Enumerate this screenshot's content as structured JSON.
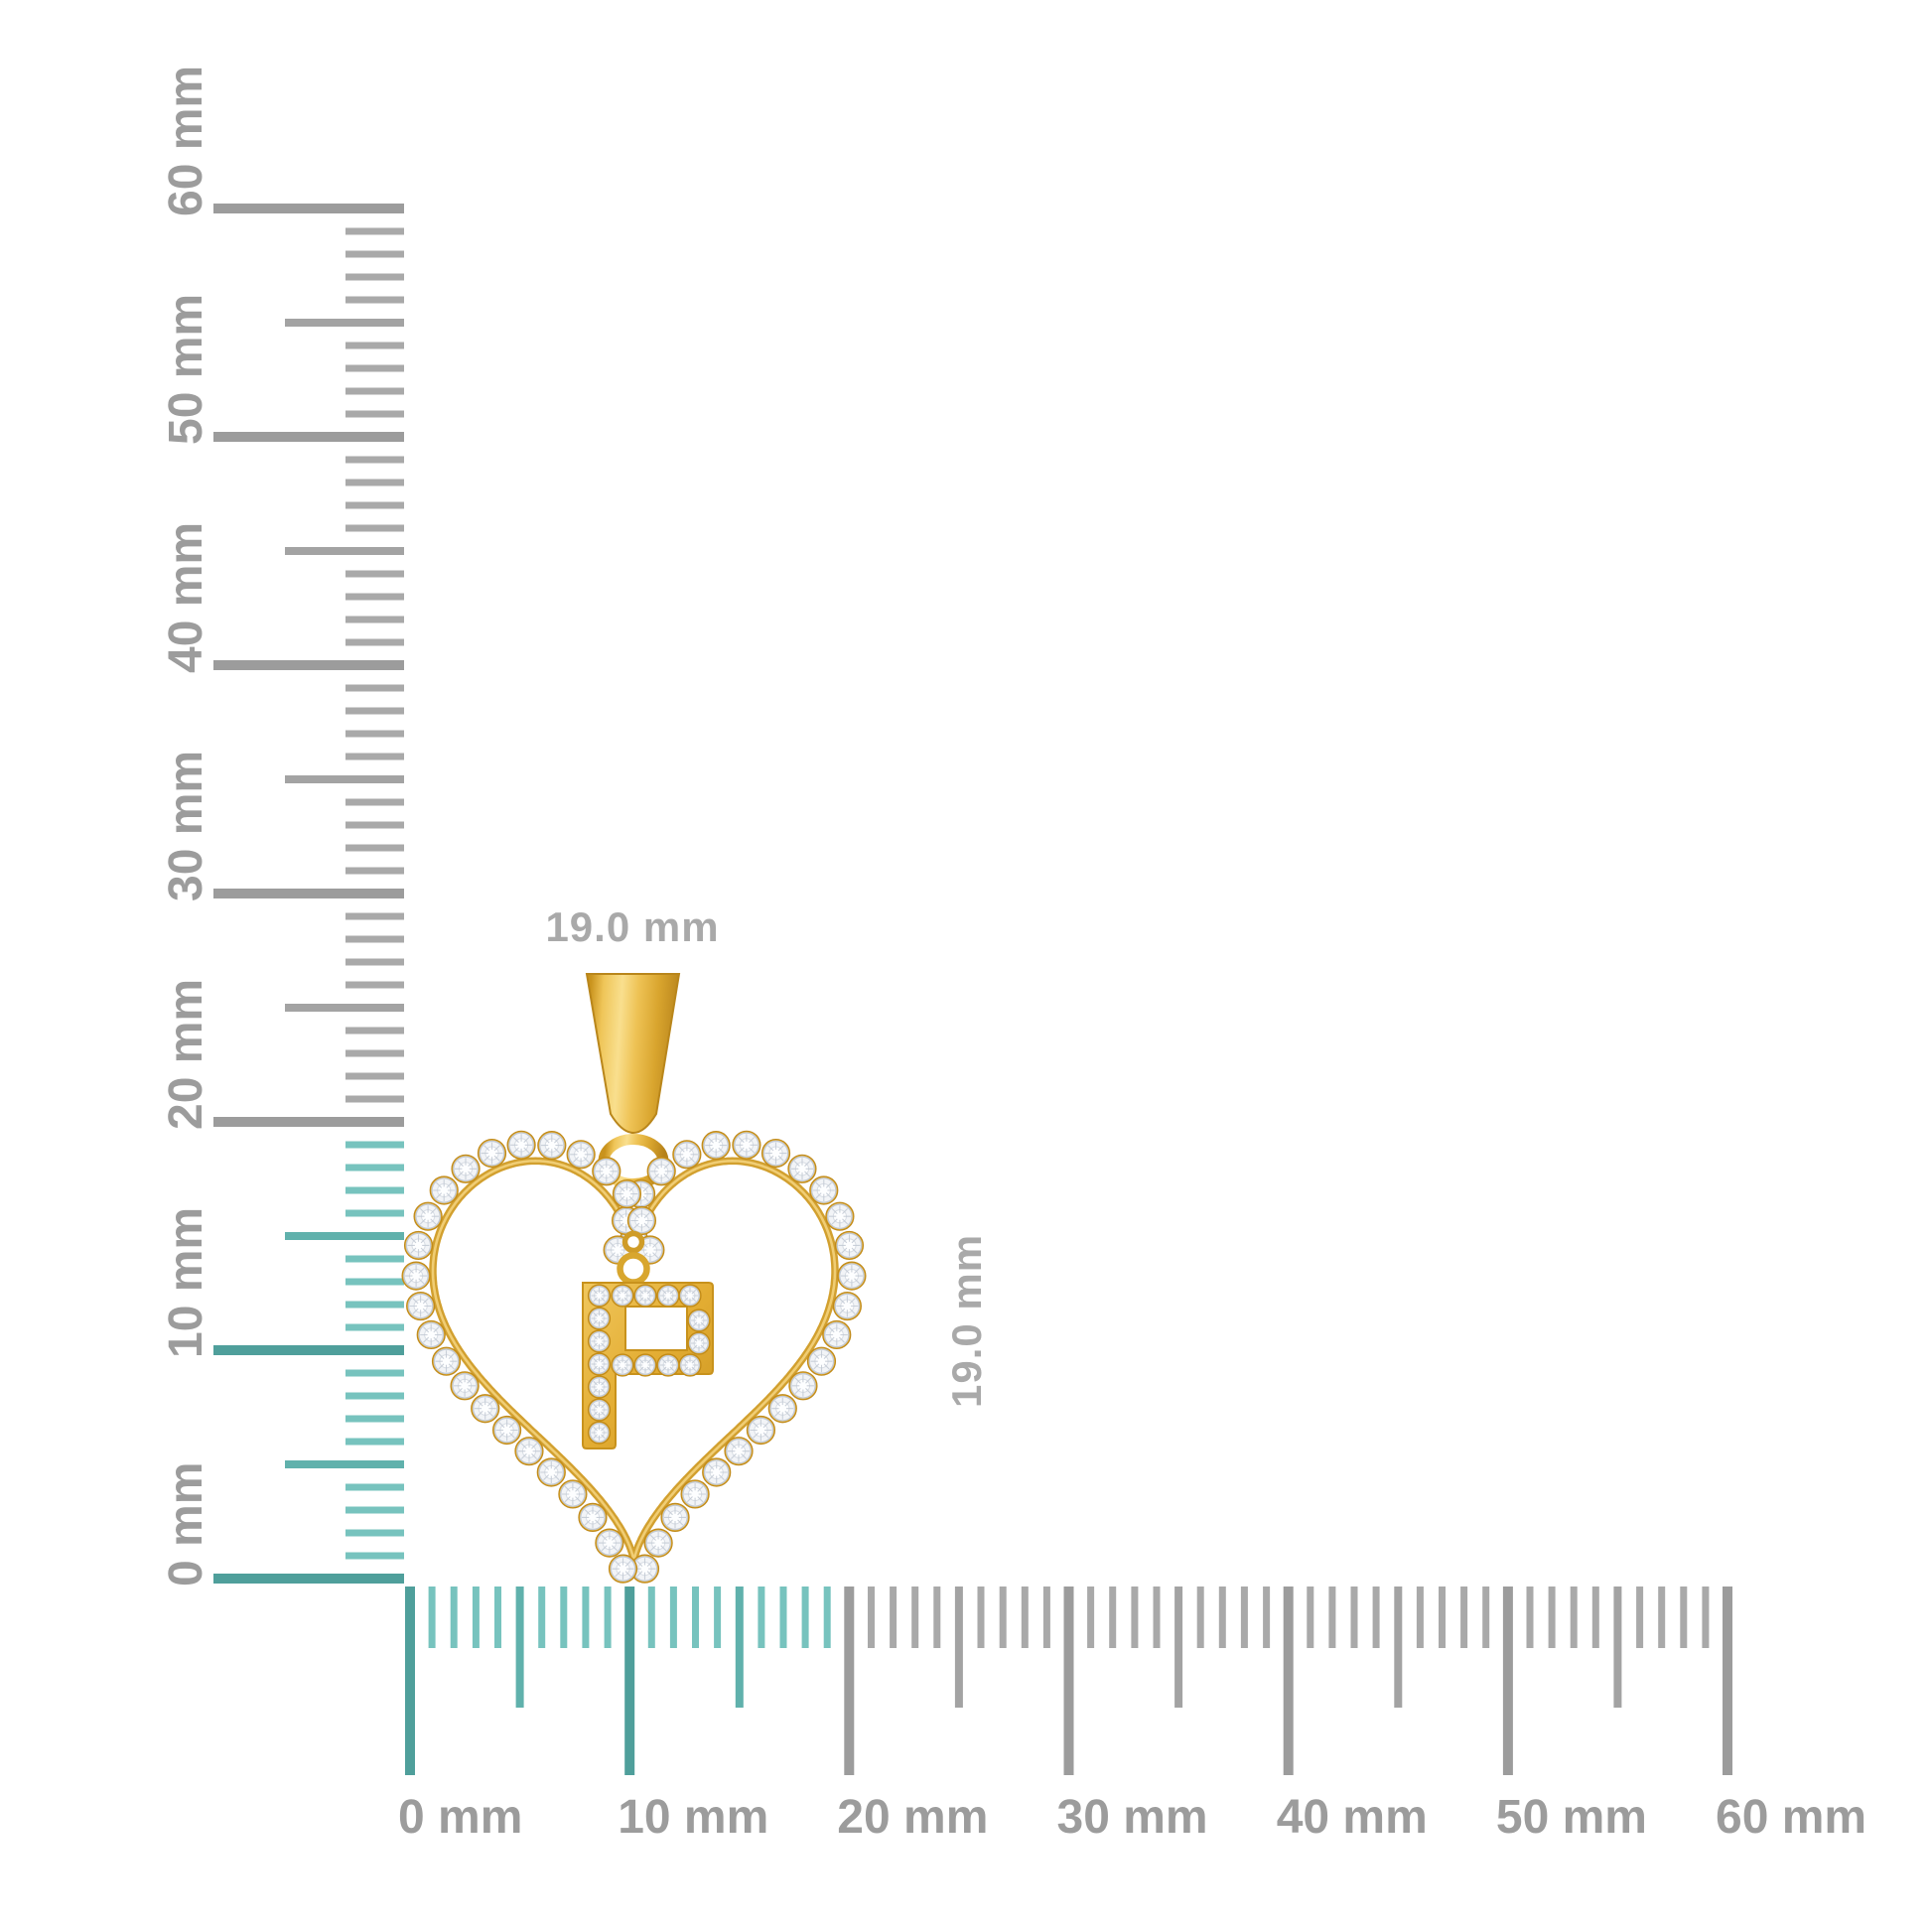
{
  "figure": {
    "background": "#ffffff",
    "description": "Gold heart-shaped diamond pendant with dangling diamond initial shown against vertical and horizontal millimeter rulers"
  },
  "rulers": {
    "unit": "mm",
    "min_mm": 0,
    "max_mm": 60,
    "minor_step_mm": 1,
    "medium_step_mm": 5,
    "major_step_mm": 10,
    "highlight_extent_mm": 20,
    "tick_labels": [
      "0 mm",
      "10 mm",
      "20 mm",
      "30 mm",
      "40 mm",
      "50 mm",
      "60 mm"
    ],
    "colors": {
      "teal_minor": "#77c3be",
      "teal_medium": "#60b1ac",
      "teal_major": "#4f9f9b",
      "gray_minor": "#a9a9a9",
      "gray_medium": "#a3a3a3",
      "gray_major": "#9c9c9c",
      "label": "#9c9c9c"
    }
  },
  "dimension_annotations": {
    "width": "19.0 mm",
    "height": "19.0 mm",
    "color": "#a9a9a9"
  },
  "pendant": {
    "letter": "P",
    "style": "heart outline halo of round diamonds with dangling diamond letter initial and tapered bail",
    "gold": "#e3ad33",
    "gold_dark": "#c08a1a",
    "gold_deep": "#b5811a",
    "gold_light": "#f9df8e",
    "gold_wire": "#d2a02f",
    "gold_wire_highlight": "#f0cd74",
    "stone_fill": "#f2f4f7",
    "stone_edge": "#c2c9d3",
    "stone_inner_edge": "#d8dde4"
  }
}
